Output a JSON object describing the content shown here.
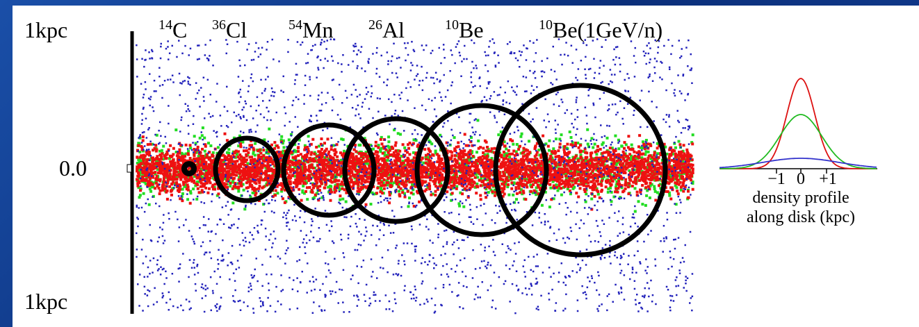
{
  "axis": {
    "top": "1kpc",
    "middle": "0.0",
    "bottom": "1kpc"
  },
  "isotopes": [
    {
      "mass": "14",
      "element": "C"
    },
    {
      "mass": "36",
      "element": "Cl"
    },
    {
      "mass": "54",
      "element": "Mn"
    },
    {
      "mass": "26",
      "element": "Al"
    },
    {
      "mass": "10",
      "element": "Be"
    },
    {
      "mass": "10",
      "element": "Be(1GeV/n)"
    }
  ],
  "inset": {
    "ticks": [
      "−1",
      "0",
      "+1"
    ],
    "caption": [
      "density profile",
      "along disk (kpc)"
    ]
  }
}
